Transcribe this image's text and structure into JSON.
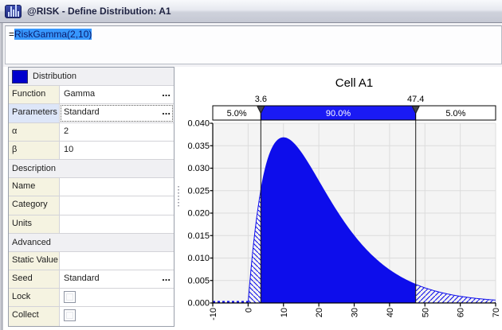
{
  "window": {
    "title": "@RISK - Define Distribution: A1",
    "icon": "risk-histogram-icon"
  },
  "formula_bar": {
    "prefix": "=",
    "formula": "RiskGamma(2,10)"
  },
  "properties_panel": {
    "rows": [
      {
        "type": "header",
        "key": "distribution",
        "label": "Distribution",
        "swatch": true
      },
      {
        "type": "field",
        "key": "function",
        "label": "Function",
        "value": "Gamma",
        "ellipsis": true
      },
      {
        "type": "field",
        "key": "parameters",
        "label": "Parameters",
        "value": "Standard",
        "ellipsis": true,
        "selected": true
      },
      {
        "type": "field",
        "key": "alpha",
        "label": "α",
        "value": "2"
      },
      {
        "type": "field",
        "key": "beta",
        "label": "β",
        "value": "10"
      },
      {
        "type": "header",
        "key": "description",
        "label": "Description"
      },
      {
        "type": "field",
        "key": "name",
        "label": "Name",
        "value": ""
      },
      {
        "type": "field",
        "key": "category",
        "label": "Category",
        "value": ""
      },
      {
        "type": "field",
        "key": "units",
        "label": "Units",
        "value": ""
      },
      {
        "type": "header",
        "key": "advanced",
        "label": "Advanced"
      },
      {
        "type": "field",
        "key": "static-value",
        "label": "Static Value",
        "value": ""
      },
      {
        "type": "field",
        "key": "seed",
        "label": "Seed",
        "value": "Standard",
        "ellipsis": true
      },
      {
        "type": "checkbox",
        "key": "lock",
        "label": "Lock",
        "checked": false
      },
      {
        "type": "checkbox",
        "key": "collect",
        "label": "Collect",
        "checked": false
      }
    ]
  },
  "chart_data": {
    "type": "area",
    "title": "Cell A1",
    "distribution": "Gamma",
    "parameters": {
      "alpha": 2,
      "beta": 10
    },
    "xlim": [
      -10,
      70
    ],
    "ylim": [
      0,
      0.04
    ],
    "x_ticks": [
      -10,
      0,
      10,
      20,
      30,
      40,
      50,
      60,
      70
    ],
    "y_ticks": [
      "0.000",
      "0.005",
      "0.010",
      "0.015",
      "0.020",
      "0.025",
      "0.030",
      "0.035",
      "0.040"
    ],
    "delimiters": {
      "left_x": 3.6,
      "right_x": 47.4,
      "left_label": "3.6",
      "right_label": "47.4"
    },
    "bands": {
      "left_pct": "5.0%",
      "middle_pct": "90.0%",
      "right_pct": "5.0%"
    },
    "curve_points": [
      [
        0,
        0
      ],
      [
        2,
        0.01637
      ],
      [
        3.6,
        0.0251
      ],
      [
        5,
        0.03033
      ],
      [
        8,
        0.03595
      ],
      [
        10,
        0.03679
      ],
      [
        12,
        0.03614
      ],
      [
        15,
        0.03347
      ],
      [
        20,
        0.02707
      ],
      [
        25,
        0.02052
      ],
      [
        30,
        0.01494
      ],
      [
        35,
        0.01057
      ],
      [
        40,
        0.00733
      ],
      [
        45,
        0.005
      ],
      [
        47.4,
        0.00414
      ],
      [
        50,
        0.00337
      ],
      [
        55,
        0.00224
      ],
      [
        60,
        0.00149
      ],
      [
        65,
        0.00097
      ],
      [
        70,
        0.00064
      ]
    ],
    "colors": {
      "curve_fill": "#0d0deb",
      "band_fill": "#1a1af5",
      "plot_bg": "#f4f4f4",
      "grid": "#dcdcdc",
      "axis": "#000000"
    }
  }
}
